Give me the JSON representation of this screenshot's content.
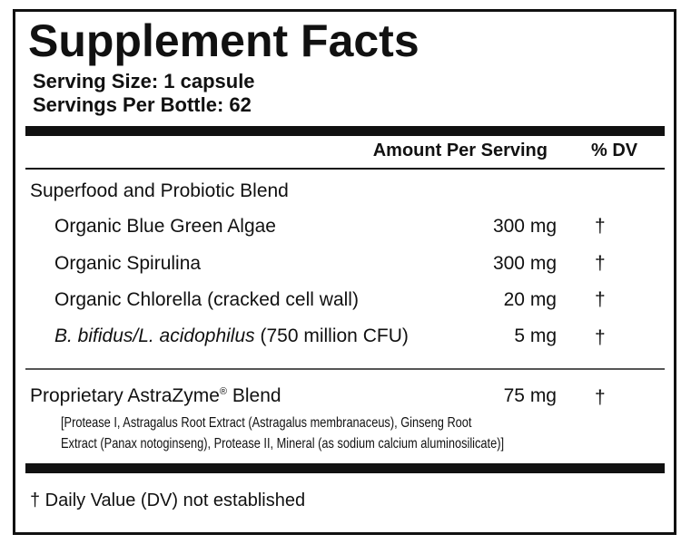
{
  "header": {
    "title": "Supplement Facts",
    "serving_size": "Serving Size: 1 capsule",
    "servings_per_container": "Servings Per Bottle: 62"
  },
  "table": {
    "columns": [
      "Amount Per Serving",
      "% DV"
    ],
    "blend": {
      "name": "Superfood and Probiotic Blend",
      "items": [
        {
          "name": "Organic Blue Green Algae",
          "amount": "300 mg",
          "dv": "†"
        },
        {
          "name": "Organic Spirulina",
          "amount": "300 mg",
          "dv": "†"
        },
        {
          "name": "Organic Chlorella (cracked cell wall)",
          "amount": "20 mg",
          "dv": "†"
        },
        {
          "name_italic": "B. bifidus/L. acidophilus",
          "name": "(750 million CFU)",
          "amount": "5 mg",
          "dv": "†"
        }
      ]
    },
    "proprietary": {
      "name_parts": [
        "Proprietary AstraZyme",
        "®",
        "Blend"
      ],
      "amount": "75 mg",
      "dv": "†",
      "ingredients": [
        "[Protease I, Astragalus Root Extract (Astragalus membranaceus), Ginseng Root",
        "Extract (Panax notoginseng), Protease II, Mineral (as sodium calcium aluminosilicate)]"
      ]
    }
  },
  "footer": "† Daily Value (DV) not established"
}
